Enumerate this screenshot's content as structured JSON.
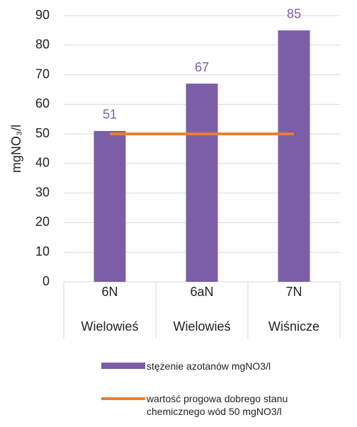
{
  "chart_data": {
    "type": "bar",
    "y_label": "mgNO₃/l",
    "categories": [
      "6N",
      "6aN",
      "7N"
    ],
    "category_groups": [
      "Wielowieś",
      "Wielowieś",
      "Wiśnicze"
    ],
    "series": [
      {
        "name": "stężenie azotanów mgNO3/l",
        "type": "bar",
        "color": "#7b5ea7",
        "values": [
          51,
          67,
          85
        ],
        "data_labels": true
      },
      {
        "name": "wartość progowa dobrego stanu chemicznego wód 50 mgNO3/l",
        "type": "line",
        "color": "#ed7d31",
        "values": [
          50,
          50,
          50
        ]
      }
    ],
    "ylim": [
      0,
      90
    ],
    "yticks": [
      0,
      10,
      20,
      30,
      40,
      50,
      60,
      70,
      80,
      90
    ],
    "grid": true,
    "legend": "bottom"
  }
}
